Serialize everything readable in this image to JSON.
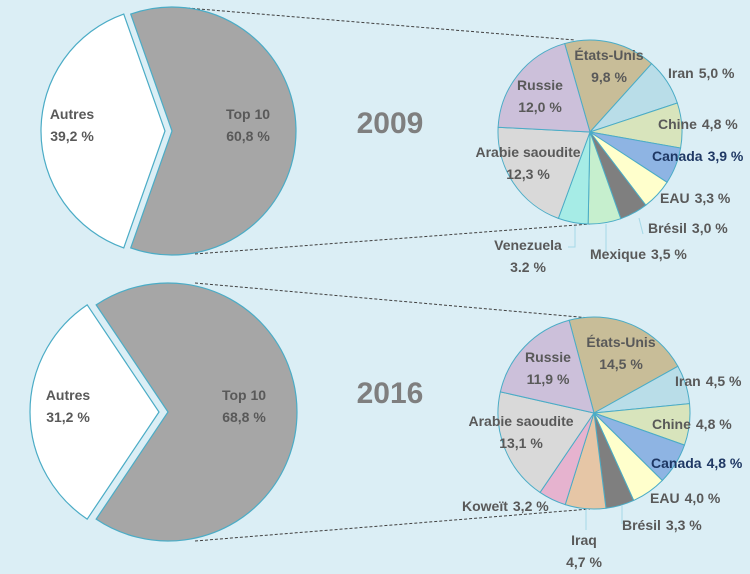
{
  "chart_data": [
    {
      "type": "pie",
      "year": "2009",
      "overview": {
        "slices": [
          {
            "label": "Top 10",
            "value": 60.8,
            "value_text": "60,8 %",
            "color": "#a6a6a6"
          },
          {
            "label": "Autres",
            "value": 39.2,
            "value_text": "39,2 %",
            "color": "#ffffff"
          }
        ]
      },
      "detail": {
        "slices": [
          {
            "label": "États-Unis",
            "value": 9.8,
            "value_text": "9,8 %",
            "color": "#c8bd98"
          },
          {
            "label": "Iran",
            "value": 5.0,
            "value_text": "5,0 %",
            "color": "#b9dde8"
          },
          {
            "label": "Chine",
            "value": 4.8,
            "value_text": "4,8 %",
            "color": "#d8e4bc"
          },
          {
            "label": "Canada",
            "value": 3.9,
            "value_text": "3,9 %",
            "color": "#8eb4e3"
          },
          {
            "label": "EAU",
            "value": 3.3,
            "value_text": "3,3 %",
            "color": "#ffffcc"
          },
          {
            "label": "Brésil",
            "value": 3.0,
            "value_text": "3,0 %",
            "color": "#7f7f7f"
          },
          {
            "label": "Mexique",
            "value": 3.5,
            "value_text": "3,5 %",
            "color": "#c6efce"
          },
          {
            "label": "Venezuela",
            "value": 3.2,
            "value_text": "3.2 %",
            "color": "#a6ece6"
          },
          {
            "label": "Arabie saoudite",
            "value": 12.3,
            "value_text": "12,3 %",
            "color": "#d9d9d9"
          },
          {
            "label": "Russie",
            "value": 12.0,
            "value_text": "12,0 %",
            "color": "#ccc0da"
          }
        ]
      }
    },
    {
      "type": "pie",
      "year": "2016",
      "overview": {
        "slices": [
          {
            "label": "Top 10",
            "value": 68.8,
            "value_text": "68,8 %",
            "color": "#a6a6a6"
          },
          {
            "label": "Autres",
            "value": 31.2,
            "value_text": "31,2 %",
            "color": "#ffffff"
          }
        ]
      },
      "detail": {
        "slices": [
          {
            "label": "États-Unis",
            "value": 14.5,
            "value_text": "14,5 %",
            "color": "#c8bd98"
          },
          {
            "label": "Iran",
            "value": 4.5,
            "value_text": "4,5 %",
            "color": "#b9dde8"
          },
          {
            "label": "Chine",
            "value": 4.8,
            "value_text": "4,8 %",
            "color": "#d8e4bc"
          },
          {
            "label": "Canada",
            "value": 4.8,
            "value_text": "4,8 %",
            "color": "#8eb4e3"
          },
          {
            "label": "EAU",
            "value": 4.0,
            "value_text": "4,0 %",
            "color": "#ffffcc"
          },
          {
            "label": "Brésil",
            "value": 3.3,
            "value_text": "3,3 %",
            "color": "#7f7f7f"
          },
          {
            "label": "Iraq",
            "value": 4.7,
            "value_text": "4,7 %",
            "color": "#e6c6a6"
          },
          {
            "label": "Koweït",
            "value": 3.2,
            "value_text": "3,2 %",
            "color": "#e6b3cf"
          },
          {
            "label": "Arabie saoudite",
            "value": 13.1,
            "value_text": "13,1 %",
            "color": "#d9d9d9"
          },
          {
            "label": "Russie",
            "value": 11.9,
            "value_text": "11,9 %",
            "color": "#ccc0da"
          }
        ]
      }
    }
  ]
}
